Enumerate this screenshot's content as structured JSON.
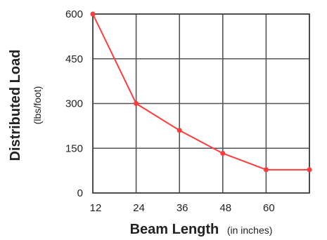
{
  "chart_data": {
    "type": "line",
    "title": "",
    "xlabel": "Beam Length",
    "xlabel_unit": "(in inches)",
    "ylabel": "Distributed Load",
    "ylabel_unit": "(lbs/foot)",
    "x_ticks": [
      "12",
      "24",
      "36",
      "48",
      "60"
    ],
    "y_ticks": [
      "0",
      "150",
      "300",
      "450",
      "600"
    ],
    "xlim": [
      12,
      72
    ],
    "ylim": [
      0,
      600
    ],
    "grid": true,
    "line_color": "#ff3b3b",
    "series": [
      {
        "x": [
          12,
          24,
          36,
          48,
          60,
          72
        ],
        "y": [
          600,
          300,
          210,
          133,
          78,
          78
        ]
      }
    ]
  }
}
